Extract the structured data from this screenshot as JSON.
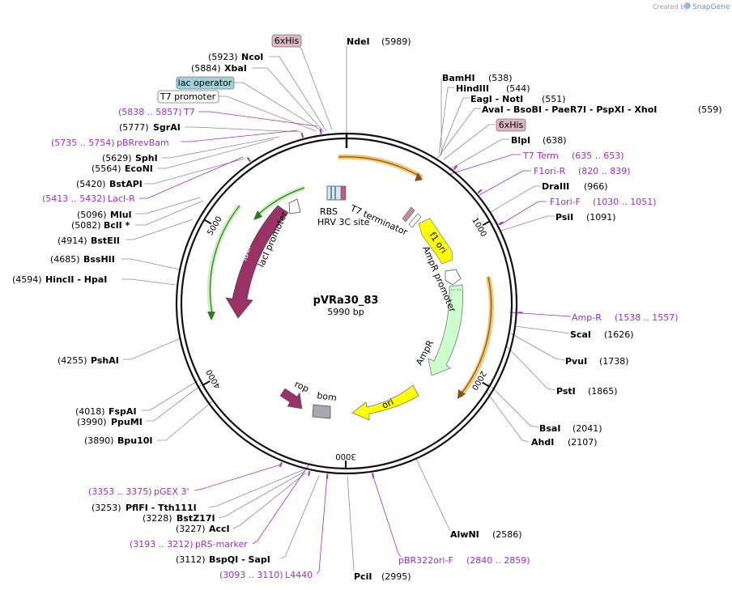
{
  "brand": {
    "created_by": "Created by",
    "name": "SnapGene"
  },
  "plasmid": {
    "name": "pVRa30_83",
    "length": "5990 bp",
    "total_bp": 5990
  },
  "colors": {
    "primer": "#9b30c8",
    "ring": "#111111",
    "leader": "#8c8c8c"
  },
  "ticks": [
    {
      "bp": 1000,
      "label": "1000"
    },
    {
      "bp": 2000,
      "label": "2000"
    },
    {
      "bp": 3000,
      "label": "3000"
    },
    {
      "bp": 4000,
      "label": "4000"
    },
    {
      "bp": 5000,
      "label": "5000"
    }
  ],
  "sites": [
    {
      "name": "NdeI",
      "pos": "(5989)",
      "bp": 5989
    },
    {
      "name": "BamHI",
      "pos": "(538)",
      "bp": 538
    },
    {
      "name": "HindIII",
      "pos": "(544)",
      "bp": 544
    },
    {
      "name": "EagI  -  NotI",
      "pos": "(551)",
      "bp": 551
    },
    {
      "name": "AvaI  -  BsoBI  -  PaeR7I  -  PspXI  -  XhoI",
      "pos": "(559)",
      "bp": 559
    },
    {
      "name": "BlpI",
      "pos": "(638)",
      "bp": 638
    },
    {
      "name": "DraIII",
      "pos": "(966)",
      "bp": 966
    },
    {
      "name": "PsiI",
      "pos": "(1091)",
      "bp": 1091
    },
    {
      "name": "ScaI",
      "pos": "(1626)",
      "bp": 1626
    },
    {
      "name": "PvuI",
      "pos": "(1738)",
      "bp": 1738
    },
    {
      "name": "PstI",
      "pos": "(1865)",
      "bp": 1865
    },
    {
      "name": "BsaI",
      "pos": "(2041)",
      "bp": 2041
    },
    {
      "name": "AhdI",
      "pos": "(2107)",
      "bp": 2107
    },
    {
      "name": "AlwNI",
      "pos": "(2586)",
      "bp": 2586
    },
    {
      "name": "PciI",
      "pos": "(2995)",
      "bp": 2995
    },
    {
      "name": "BspQI  -  SapI",
      "pos": "(3112)",
      "bp": 3112
    },
    {
      "name": "AccI",
      "pos": "(3227)",
      "bp": 3227
    },
    {
      "name": "BstZ17I",
      "pos": "(3228)",
      "bp": 3228
    },
    {
      "name": "PflFI  -  Tth111I",
      "pos": "(3253)",
      "bp": 3253
    },
    {
      "name": "Bpu10I",
      "pos": "(3890)",
      "bp": 3890
    },
    {
      "name": "PpuMI",
      "pos": "(3990)",
      "bp": 3990
    },
    {
      "name": "FspAI",
      "pos": "(4018)",
      "bp": 4018
    },
    {
      "name": "PshAI",
      "pos": "(4255)",
      "bp": 4255
    },
    {
      "name": "HincII  -  HpaI",
      "pos": "(4594)",
      "bp": 4594
    },
    {
      "name": "BssHII",
      "pos": "(4685)",
      "bp": 4685
    },
    {
      "name": "BstEII",
      "pos": "(4914)",
      "bp": 4914
    },
    {
      "name": "BclI *",
      "pos": "(5082)",
      "bp": 5082
    },
    {
      "name": "MluI",
      "pos": "(5096)",
      "bp": 5096
    },
    {
      "name": "EcoNI",
      "pos": "(5564)",
      "bp": 5564
    },
    {
      "name": "SphI",
      "pos": "(5629)",
      "bp": 5629
    },
    {
      "name": "SgrAI",
      "pos": "(5777)",
      "bp": 5777
    },
    {
      "name": "XbaI",
      "pos": "(5884)",
      "bp": 5884
    },
    {
      "name": "NcoI",
      "pos": "(5923)",
      "bp": 5923
    },
    {
      "name": "BstAPI",
      "pos": "(5420)",
      "bp": 5420
    }
  ],
  "primers": [
    {
      "name": "T7 Term",
      "range": "(635 .. 653)",
      "bp": 644
    },
    {
      "name": "F1ori-R",
      "range": "(820 .. 839)",
      "bp": 830
    },
    {
      "name": "F1ori-F",
      "range": "(1030 .. 1051)",
      "bp": 1040
    },
    {
      "name": "Amp-R",
      "range": "(1538 .. 1557)",
      "bp": 1548
    },
    {
      "name": "pBR322ori-F",
      "range": "(2840 .. 2859)",
      "bp": 2850
    },
    {
      "name": "L4440",
      "range": "(3093 .. 3110)",
      "bp": 3101
    },
    {
      "name": "pRS-marker",
      "range": "(3193 .. 3212)",
      "bp": 3202
    },
    {
      "name": "pGEX 3'",
      "range": "(3353 .. 3375)",
      "bp": 3364
    },
    {
      "name": "LacI-R",
      "range": "(5413 .. 5432)",
      "bp": 5422
    },
    {
      "name": "pBRrevBam",
      "range": "(5735 .. 5754)",
      "bp": 5745
    },
    {
      "name": "T7",
      "range": "(5838 .. 5857)",
      "bp": 5848
    }
  ],
  "boxed_features": [
    {
      "name": "6xHis",
      "color": "#dcb6c3",
      "bp": 5970
    },
    {
      "name": "lac operator",
      "color": "#9fd2dc",
      "bp": 5860
    },
    {
      "name": "T7 promoter",
      "color": "#ffffff",
      "bp": 5845
    },
    {
      "name": "6xHis",
      "color": "#dcb6c3",
      "bp": 580
    }
  ],
  "features": [
    {
      "name": "RBS",
      "type": "text"
    },
    {
      "name": "HRV 3C site",
      "type": "text"
    },
    {
      "name": "T7 terminator",
      "type": "text"
    },
    {
      "name": "f1 ori",
      "type": "arrow",
      "color": "#ffff00"
    },
    {
      "name": "AmpR promoter",
      "type": "text"
    },
    {
      "name": "AmpR",
      "type": "arrow",
      "color": "#ccffcc"
    },
    {
      "name": "ori",
      "type": "arrow",
      "color": "#ffff00"
    },
    {
      "name": "bom",
      "type": "box",
      "color": "#a8a8b0"
    },
    {
      "name": "rop",
      "type": "arrow",
      "color": "#993366"
    },
    {
      "name": "lacI",
      "type": "arrow",
      "color": "#993366"
    },
    {
      "name": "lacI promoter",
      "type": "text"
    }
  ]
}
